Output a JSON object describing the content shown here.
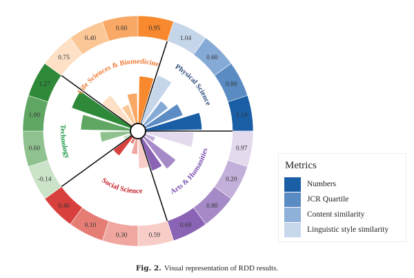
{
  "chart_data": {
    "type": "radial-bar",
    "metrics": [
      "Linguistic style similarity",
      "Content similarity",
      "JCR Quartile",
      "Numbers"
    ],
    "sectors": [
      {
        "name": "Physical Science",
        "values": [
          1.04,
          0.6,
          0.8,
          1.14
        ],
        "colors": [
          "#c6d6ea",
          "#86aad6",
          "#5a8bc3",
          "#1a5ea6"
        ],
        "label_color": "#2b4a7a"
      },
      {
        "name": "Arts & Humanities",
        "values": [
          0.97,
          0.2,
          0.8,
          0.69
        ],
        "colors": [
          "#e3daee",
          "#c3b0da",
          "#a68ac7",
          "#8a63b4"
        ],
        "label_color": "#7a4fb0"
      },
      {
        "name": "Social Science",
        "values": [
          0.59,
          0.3,
          0.1,
          0.46
        ],
        "colors": [
          "#f8cdc8",
          "#efa7a0",
          "#e57d75",
          "#d8403e"
        ],
        "label_color": "#c8222a"
      },
      {
        "name": "Technology",
        "values": [
          -0.14,
          0.6,
          1.0,
          1.27
        ],
        "colors": [
          "#cbe3c8",
          "#90c290",
          "#60a663",
          "#2e8a38"
        ],
        "label_color": "#1f9a4a"
      },
      {
        "name": "Life Sciences & Biomedicine",
        "values": [
          0.75,
          0.4,
          0.6,
          0.95
        ],
        "colors": [
          "#fde0c5",
          "#fbc796",
          "#f9a865",
          "#f8892e"
        ],
        "label_color": "#f07a35"
      }
    ]
  },
  "legend": {
    "title": "Metrics",
    "items": [
      {
        "label": "Numbers",
        "color": "#1a5ea6"
      },
      {
        "label": "JCR Quartile",
        "color": "#5a8bc3"
      },
      {
        "label": "Content similarity",
        "color": "#8fb0d8"
      },
      {
        "label": "Linguistic style similarity",
        "color": "#c8d8ec"
      }
    ]
  },
  "caption": {
    "label": "Fig. 2.",
    "text": "Visual representation of RDD results."
  }
}
